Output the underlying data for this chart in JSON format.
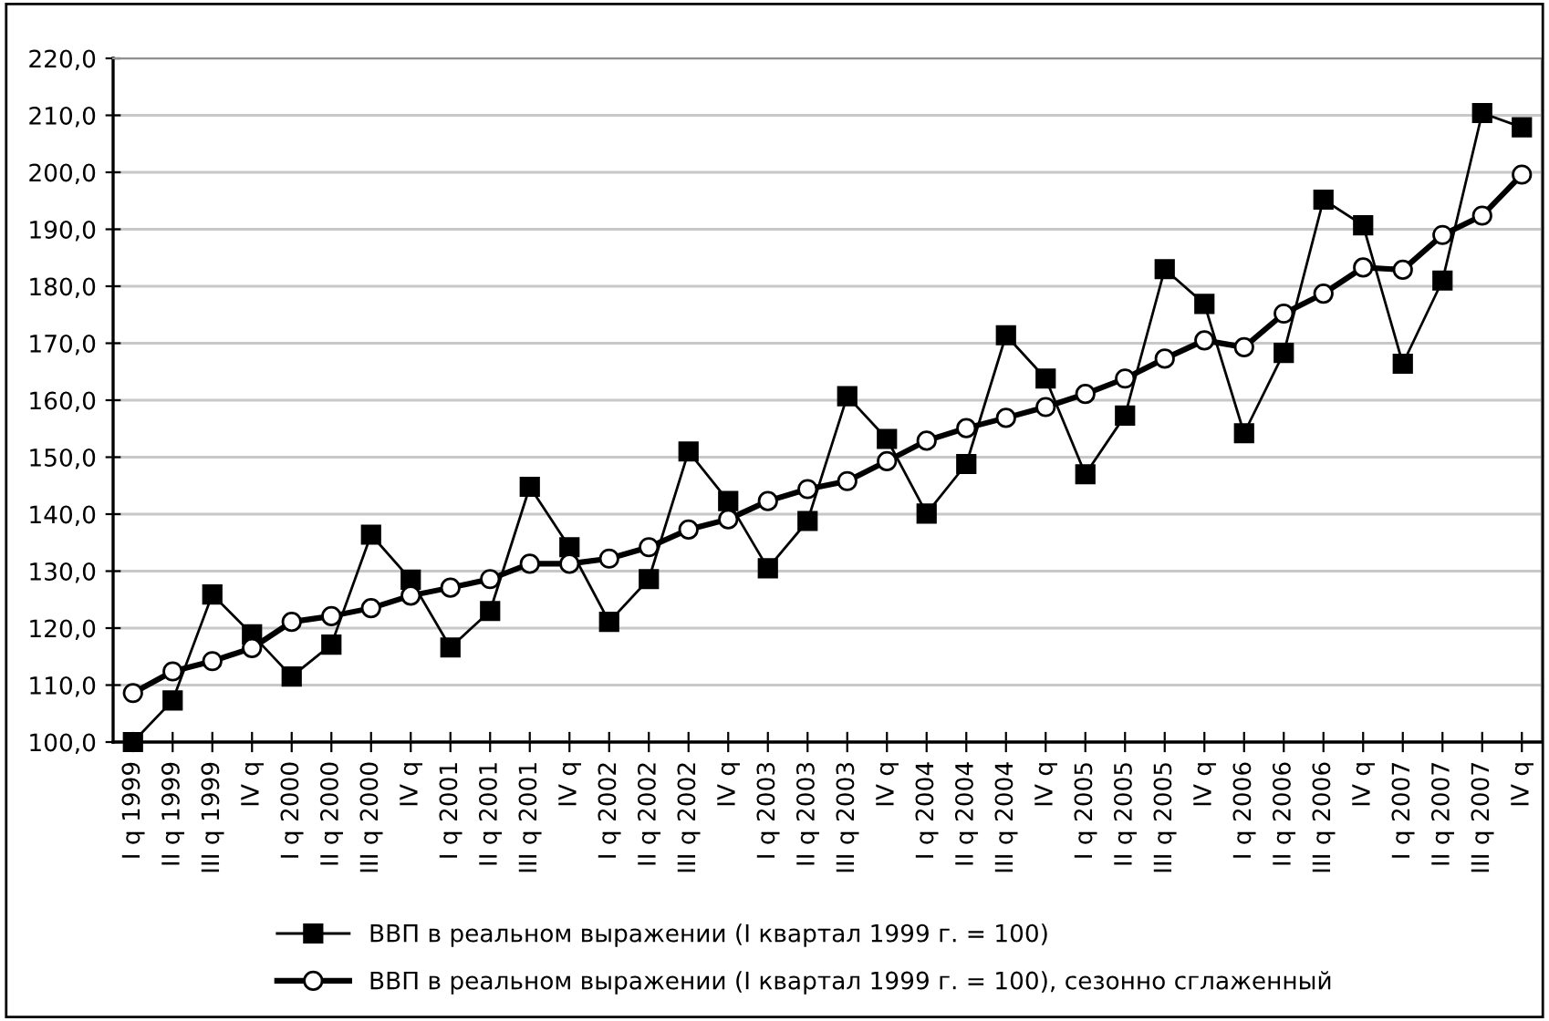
{
  "chart_data": {
    "type": "line",
    "categories": [
      "I q 1999",
      "II q 1999",
      "III q 1999",
      "IV q",
      "I q 2000",
      "II q 2000",
      "III q 2000",
      "IV q",
      "I q 2001",
      "II q 2001",
      "III q 2001",
      "IV q",
      "I q 2002",
      "II q 2002",
      "III q 2002",
      "IV q",
      "I q 2003",
      "II q 2003",
      "III q 2003",
      "IV q",
      "I q 2004",
      "II q 2004",
      "III q 2004",
      "IV q",
      "I q 2005",
      "II q 2005",
      "III q 2005",
      "IV q",
      "I q 2006",
      "II q 2006",
      "III q 2006",
      "IV q",
      "I q 2007",
      "II q 2007",
      "III q 2007",
      "IV q"
    ],
    "series": [
      {
        "name": "ВВП в реальном выражении (I квартал 1999 г. = 100)",
        "color": "#000000",
        "marker": "square",
        "values": [
          100.0,
          107.3,
          125.9,
          118.9,
          111.5,
          117.1,
          136.4,
          128.5,
          116.6,
          123.0,
          144.8,
          134.2,
          121.1,
          128.6,
          151.0,
          142.3,
          130.5,
          138.8,
          160.7,
          153.2,
          140.1,
          148.8,
          171.4,
          163.8,
          147.0,
          157.3,
          183.0,
          176.9,
          154.2,
          168.3,
          195.2,
          190.7,
          166.4,
          181.0,
          210.4,
          207.9
        ]
      },
      {
        "name": "ВВП в реальном выражении (I квартал 1999 г. = 100), сезонно сглаженный",
        "color": "#000000",
        "marker": "circle",
        "values": [
          108.6,
          112.4,
          114.2,
          116.5,
          121.1,
          122.1,
          123.5,
          125.7,
          127.1,
          128.6,
          131.3,
          131.3,
          132.2,
          134.2,
          137.3,
          139.1,
          142.3,
          144.4,
          145.8,
          149.3,
          152.9,
          155.1,
          156.9,
          158.8,
          161.1,
          163.8,
          167.3,
          170.5,
          169.3,
          175.2,
          178.7,
          183.3,
          182.9,
          189.0,
          192.4,
          199.6
        ]
      }
    ],
    "ylim": [
      100,
      220
    ],
    "yticks": [
      {
        "value": 100,
        "label": "100,0"
      },
      {
        "value": 110,
        "label": "110,0"
      },
      {
        "value": 120,
        "label": "120,0"
      },
      {
        "value": 130,
        "label": "130,0"
      },
      {
        "value": 140,
        "label": "140,0"
      },
      {
        "value": 150,
        "label": "150,0"
      },
      {
        "value": 160,
        "label": "160,0"
      },
      {
        "value": 170,
        "label": "170,0"
      },
      {
        "value": 180,
        "label": "180,0"
      },
      {
        "value": 190,
        "label": "190,0"
      },
      {
        "value": 200,
        "label": "200,0"
      },
      {
        "value": 210,
        "label": "210,0"
      },
      {
        "value": 220,
        "label": "220,0"
      }
    ],
    "grid": "y",
    "legend": "bottom",
    "line_style": "solid"
  }
}
